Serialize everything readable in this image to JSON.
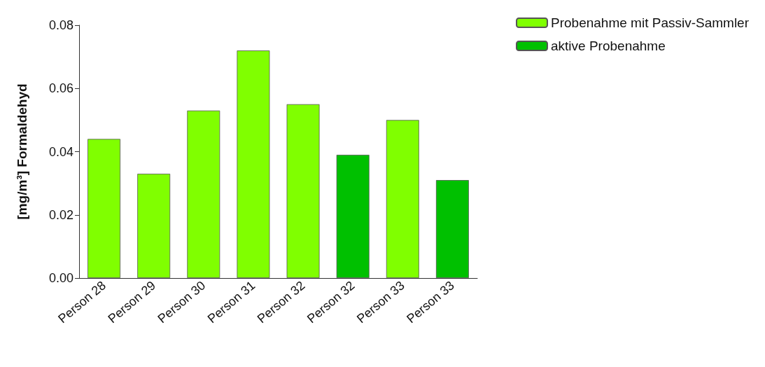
{
  "chart_data": {
    "type": "bar",
    "ylabel": "[mg/m³] Formaldehyd",
    "categories": [
      "Person 28",
      "Person 29",
      "Person 30",
      "Person 31",
      "Person 32",
      "Person 32",
      "Person 33",
      "Person 33"
    ],
    "series": [
      {
        "name": "Probenahme mit Passiv-Sammler",
        "color": "#80ff00",
        "values": [
          0.044,
          0.033,
          0.053,
          0.072,
          0.055,
          null,
          0.05,
          null
        ]
      },
      {
        "name": "aktive Probenahme",
        "color": "#00c000",
        "values": [
          null,
          null,
          null,
          null,
          null,
          0.039,
          null,
          0.031
        ]
      }
    ],
    "ylim": [
      0,
      0.08
    ],
    "yticks": [
      {
        "value": 0,
        "label": "0.00"
      },
      {
        "value": 0.02,
        "label": "0.02"
      },
      {
        "value": 0.04,
        "label": "0.04"
      },
      {
        "value": 0.06,
        "label": "0.06"
      },
      {
        "value": 0.08,
        "label": "0.08"
      }
    ],
    "grid": false,
    "legend": "top right"
  }
}
